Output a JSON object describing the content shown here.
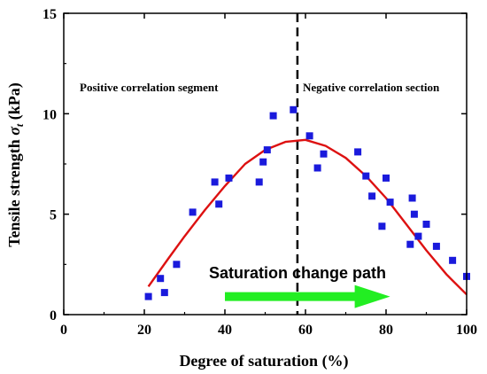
{
  "chart_data": {
    "type": "scatter",
    "xlabel": "Degree of saturation (%)",
    "ylabel_main": "Tensile strength ",
    "ylabel_symbol": "σ",
    "ylabel_sub": "t",
    "ylabel_unit": " (kPa)",
    "xlim": [
      0,
      100
    ],
    "ylim": [
      0,
      15
    ],
    "xticks": [
      0,
      20,
      40,
      60,
      80,
      100
    ],
    "yticks": [
      0,
      5,
      10,
      15
    ],
    "grid": false,
    "divider_x": 58,
    "annotations": {
      "left_region": "Positive correlation segment",
      "right_region": "Negative correlation section",
      "path_label": "Saturation change path"
    },
    "arrow": {
      "from_x": 40,
      "to_x": 81,
      "y": 0.9
    },
    "points": {
      "x": [
        21,
        24,
        25,
        28,
        32,
        37.5,
        38.5,
        41,
        48.5,
        49.5,
        50.5,
        52,
        57,
        61,
        63,
        64.5,
        73,
        75,
        76.5,
        79,
        80,
        81,
        86,
        86.5,
        87,
        88,
        90,
        92.5,
        96.5,
        100
      ],
      "y": [
        0.9,
        1.8,
        1.1,
        2.5,
        5.1,
        6.6,
        5.5,
        6.8,
        6.6,
        7.6,
        8.2,
        9.9,
        10.2,
        8.9,
        7.3,
        8.0,
        8.1,
        6.9,
        5.9,
        4.4,
        6.8,
        5.6,
        3.5,
        5.8,
        5.0,
        3.9,
        4.5,
        3.4,
        2.7,
        1.9
      ]
    },
    "fit_curve": {
      "x": [
        21,
        26,
        30,
        35,
        40,
        45,
        50,
        55,
        60,
        65,
        70,
        75,
        80,
        85,
        90,
        95,
        100
      ],
      "y": [
        1.4,
        2.8,
        3.9,
        5.2,
        6.4,
        7.5,
        8.2,
        8.6,
        8.7,
        8.4,
        7.8,
        6.9,
        5.8,
        4.5,
        3.2,
        2.0,
        1.0
      ]
    },
    "colors": {
      "points": "#1a1adc",
      "curve": "#dd1111",
      "arrow": "#22ee22",
      "divider": "#000000",
      "axis": "#000000"
    }
  }
}
